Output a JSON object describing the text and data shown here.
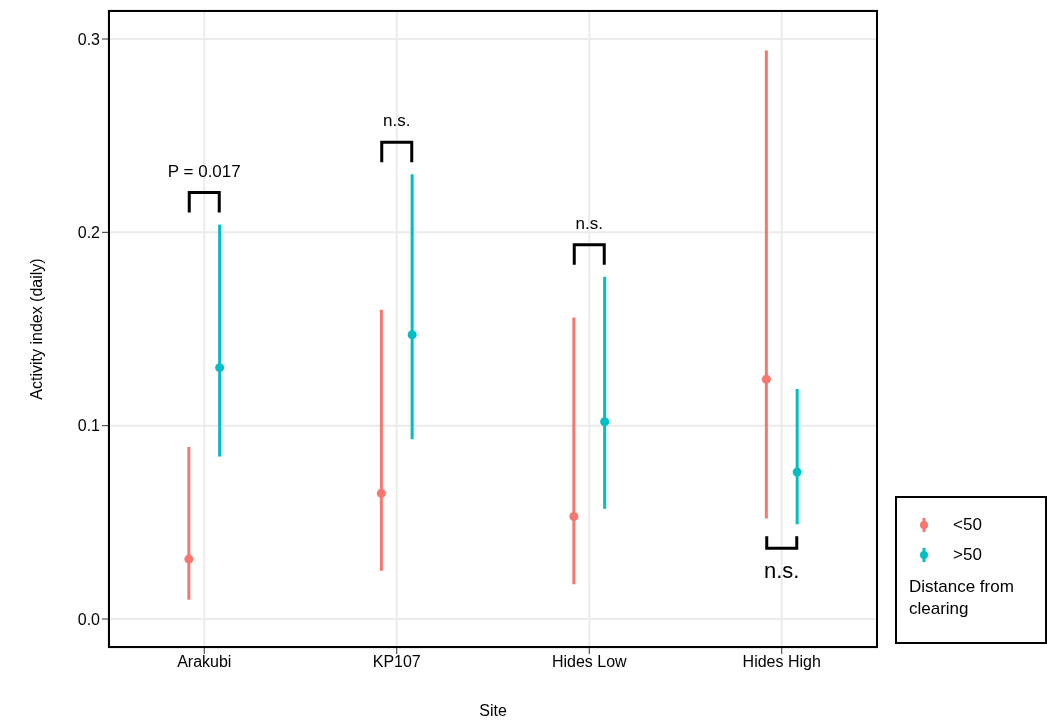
{
  "chart_data": {
    "type": "scatter",
    "xlabel": "Site",
    "ylabel": "Activity index (daily)",
    "legend_title": "Distance from clearing",
    "categories": [
      "Arakubi",
      "KP107",
      "Hides Low",
      "Hides High"
    ],
    "series": [
      {
        "name": "<50",
        "color": "#f8766d",
        "values": [
          0.031,
          0.065,
          0.053,
          0.124
        ],
        "errors": [
          [
            0.01,
            0.089
          ],
          [
            0.025,
            0.16
          ],
          [
            0.018,
            0.156
          ],
          [
            0.052,
            0.294
          ]
        ]
      },
      {
        "name": ">50",
        "color": "#00bfc4",
        "values": [
          0.13,
          0.147,
          0.102,
          0.076
        ],
        "errors": [
          [
            0.084,
            0.204
          ],
          [
            0.093,
            0.23
          ],
          [
            0.057,
            0.177
          ],
          [
            0.049,
            0.119
          ]
        ]
      }
    ],
    "annotations": [
      "P = 0.017",
      "n.s.",
      "n.s.",
      "n.s."
    ],
    "ylim": [
      -0.015,
      0.315
    ],
    "yticks": [
      {
        "value": 0,
        "label": "0.0"
      },
      {
        "value": 0.1,
        "label": "0.1"
      },
      {
        "value": 0.2,
        "label": "0.2"
      },
      {
        "value": 0.3,
        "label": "0.3"
      }
    ],
    "grid": true,
    "legend": "bottom right",
    "marker": "circle"
  }
}
